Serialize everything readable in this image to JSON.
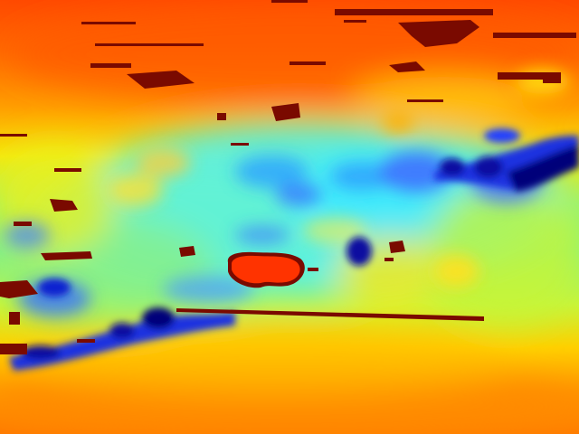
{
  "image": {
    "kind": "false-color depth map",
    "colormap": "jet",
    "palette": {
      "dark_red": "#7a0a00",
      "red": "#ff2a00",
      "orange": "#ff7a00",
      "yellow": "#f4f20a",
      "yellow_green": "#c6f53a",
      "cyan": "#33f0ff",
      "light_blue": "#5ab4ff",
      "blue": "#1a3cff",
      "dark_blue": "#06007a"
    }
  }
}
